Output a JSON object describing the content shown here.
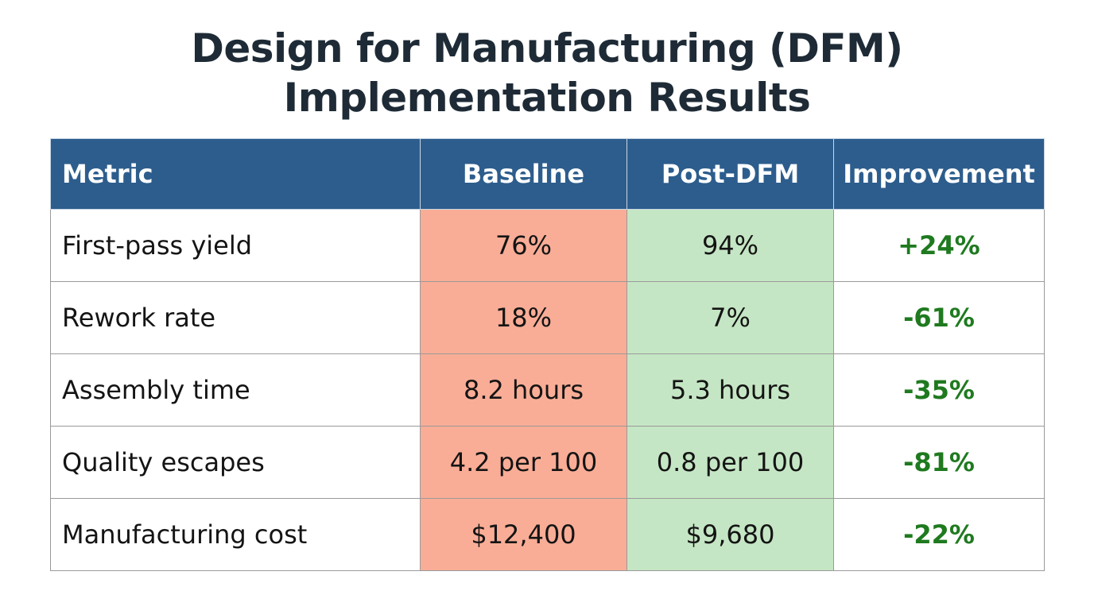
{
  "title": {
    "line1": "Design for Manufacturing (DFM)",
    "line2": "Implementation Results"
  },
  "colors": {
    "header_bg": "#2d5d8d",
    "baseline_bg": "#f9ad96",
    "post_bg": "#c5e6c4",
    "improvement_text": "#1f7a1f"
  },
  "chart_data": {
    "type": "table",
    "title": "Design for Manufacturing (DFM) Implementation Results",
    "columns": [
      "Metric",
      "Baseline",
      "Post-DFM",
      "Improvement"
    ],
    "rows": [
      {
        "metric": "First-pass yield",
        "baseline": "76%",
        "post": "94%",
        "improvement": "+24%"
      },
      {
        "metric": "Rework rate",
        "baseline": "18%",
        "post": "7%",
        "improvement": "-61%"
      },
      {
        "metric": "Assembly time",
        "baseline": "8.2 hours",
        "post": "5.3 hours",
        "improvement": "-35%"
      },
      {
        "metric": "Quality escapes",
        "baseline": "4.2 per 100",
        "post": "0.8 per 100",
        "improvement": "-81%"
      },
      {
        "metric": "Manufacturing cost",
        "baseline": "$12,400",
        "post": "$9,680",
        "improvement": "-22%"
      }
    ]
  }
}
